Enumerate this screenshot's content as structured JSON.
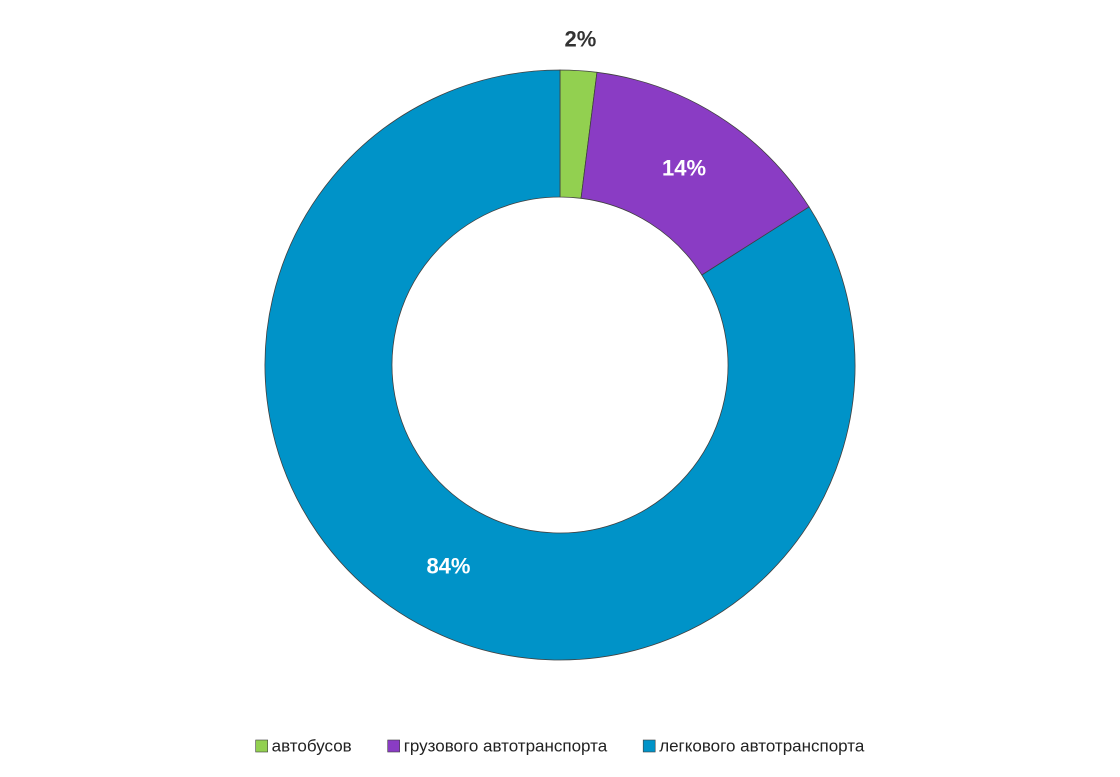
{
  "chart_data": {
    "type": "donut",
    "categories": [
      "автобусов",
      "грузового автотранспорта",
      "легкового автотранспорта"
    ],
    "values": [
      2,
      14,
      84
    ],
    "value_labels": [
      "2%",
      "14%",
      "84%"
    ],
    "colors": [
      "#92d050",
      "#8a3cc4",
      "#0093c8"
    ],
    "legend": "bottom"
  }
}
